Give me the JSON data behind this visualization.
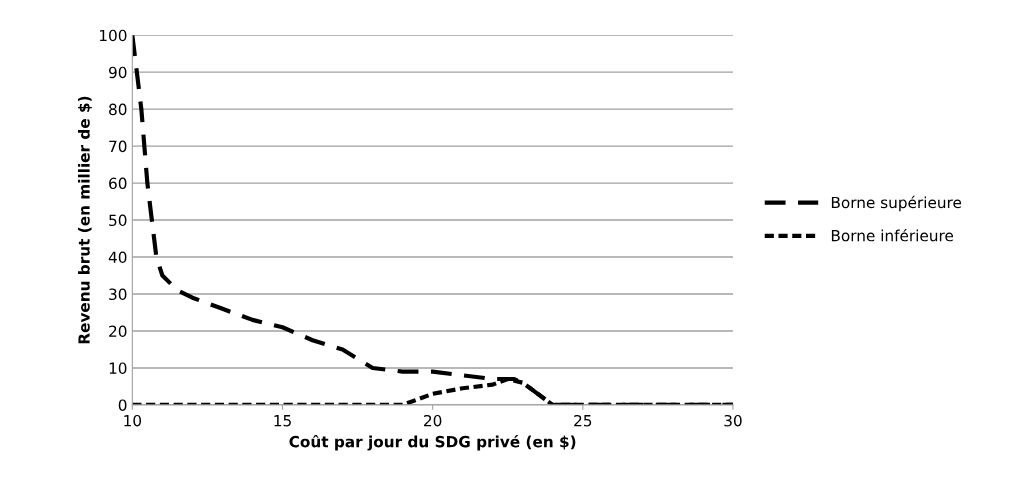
{
  "chart_data": {
    "type": "line",
    "xlabel": "Coût par jour du SDG privé (en $)",
    "ylabel": "Revenu brut (en millier de $)",
    "xlim": [
      10,
      30
    ],
    "xticks": [
      10,
      15,
      20,
      25,
      30
    ],
    "ylim": [
      0,
      100
    ],
    "yticks": [
      0,
      10,
      20,
      30,
      40,
      50,
      60,
      70,
      80,
      90,
      100
    ],
    "grid": "y",
    "legend": "right",
    "marker": "none",
    "series": [
      {
        "name": "Borne supérieure",
        "color": "#000000",
        "line_style": "dashed",
        "x": [
          10,
          10.3,
          10.5,
          10.8,
          11,
          11.5,
          12,
          13,
          14,
          15,
          16,
          17,
          18,
          19,
          20,
          21,
          22,
          22.7,
          23,
          23.5,
          24,
          25,
          30
        ],
        "values": [
          100,
          80,
          60,
          40,
          35,
          31,
          29,
          26,
          23,
          21,
          17.5,
          15,
          10,
          9,
          9,
          8,
          7,
          7,
          6,
          3,
          0,
          0,
          0
        ]
      },
      {
        "name": "Borne inférieure",
        "color": "#000000",
        "line_style": "dotted",
        "x": [
          10,
          15,
          19,
          20,
          21,
          22,
          22.5,
          23,
          24,
          30
        ],
        "values": [
          0,
          0,
          0,
          3,
          4.5,
          5.5,
          7,
          6,
          0,
          0
        ]
      }
    ]
  }
}
